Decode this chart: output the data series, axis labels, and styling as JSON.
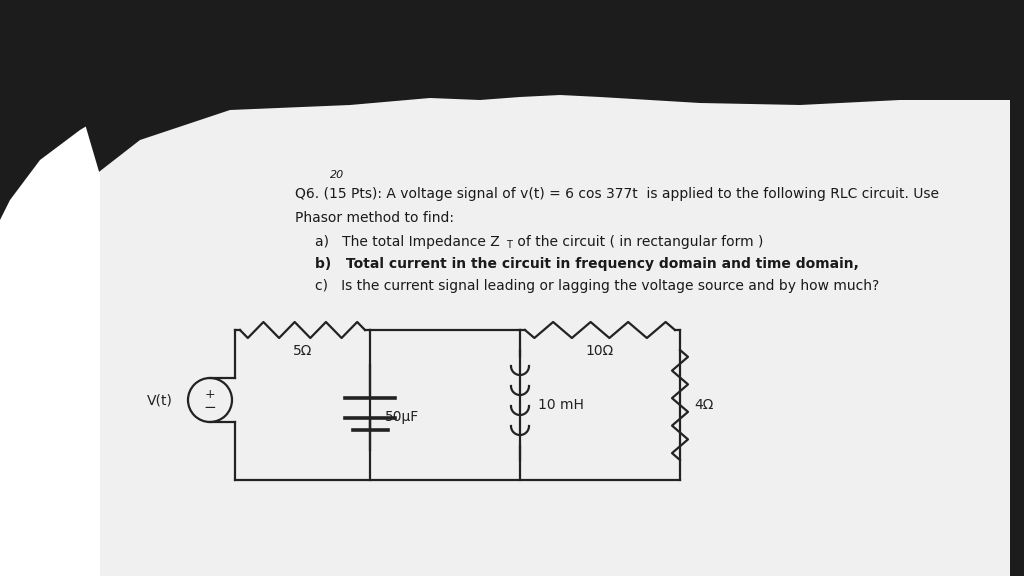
{
  "bg_color": "#1c1c1c",
  "paper_color": "#f2f2f2",
  "paper_left_color": "#e8e8e8",
  "text_color": "#1a1a1a",
  "line_color": "#222222",
  "line_width": 1.6,
  "font_size_main": 10.5,
  "font_size_small": 9,
  "superscript": "20",
  "line1": "Q6. (15 Pts): A voltage signal of v(t) = 6 cos 377t  is applied to the following RLC circuit. Use",
  "line2": "Phasor method to find:",
  "line_a": "a)   The total Impedance Z",
  "line_a2": "T",
  "line_a3": " of the circuit ( in rectangular form )",
  "line_b": "b)   Total current in the circuit in frequency domain and time domain,",
  "line_c": "c)   Is the current signal leading or lagging the voltage source and by how much?",
  "r1_label": "5Ω",
  "r2_label": "10Ω",
  "cap_label": "50μF",
  "ind_label": "10 mH",
  "r3_label": "4Ω",
  "src_label": "V(t)"
}
